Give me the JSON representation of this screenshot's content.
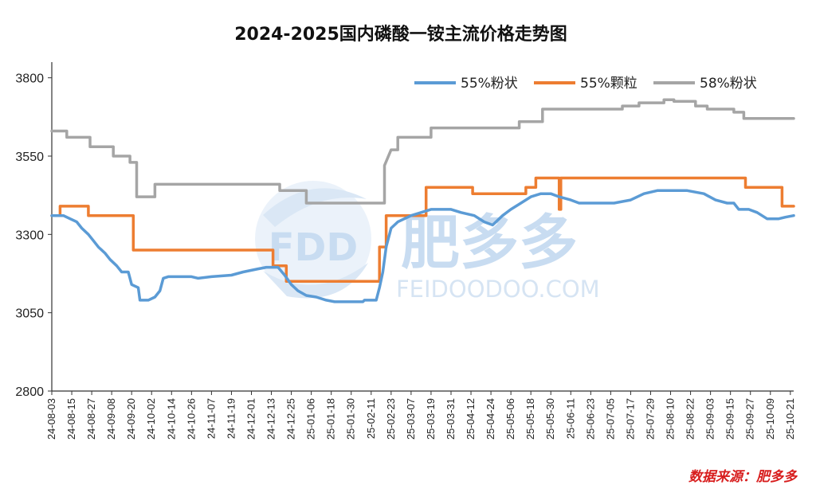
{
  "chart_data": {
    "type": "line",
    "title": "2024-2025国内磷酸一铵主流价格走势图",
    "source": "数据来源：肥多多",
    "watermark": {
      "logo": "FDD",
      "brand": "肥多多",
      "site": "FEIDOODOO.COM"
    },
    "ylim": [
      2800,
      3850
    ],
    "yticks": [
      2800,
      3050,
      3300,
      3550,
      3800
    ],
    "xlim": [
      "2024-08-03",
      "2025-10-23"
    ],
    "xticks": [
      "24-08-03",
      "24-08-15",
      "24-08-27",
      "24-09-08",
      "24-09-20",
      "24-10-02",
      "24-10-14",
      "24-10-26",
      "24-11-07",
      "24-11-19",
      "24-12-01",
      "24-12-13",
      "24-12-25",
      "25-01-06",
      "25-01-18",
      "25-01-30",
      "25-02-11",
      "25-02-23",
      "25-03-07",
      "25-03-19",
      "25-03-31",
      "25-04-12",
      "25-04-24",
      "25-05-06",
      "25-05-18",
      "25-05-30",
      "25-06-11",
      "25-06-23",
      "25-07-05",
      "25-07-17",
      "25-07-29",
      "25-08-10",
      "25-08-22",
      "25-09-03",
      "25-09-15",
      "25-09-27",
      "25-10-09",
      "25-10-21"
    ],
    "legend_position": "top-right",
    "grid": false,
    "series": [
      {
        "name": "55%粉状",
        "color": "#5b9bd5",
        "points": [
          [
            "2024-08-03",
            3360
          ],
          [
            "2024-08-10",
            3360
          ],
          [
            "2024-08-14",
            3350
          ],
          [
            "2024-08-18",
            3340
          ],
          [
            "2024-08-21",
            3320
          ],
          [
            "2024-08-25",
            3300
          ],
          [
            "2024-08-28",
            3280
          ],
          [
            "2024-08-31",
            3260
          ],
          [
            "2024-09-04",
            3240
          ],
          [
            "2024-09-07",
            3220
          ],
          [
            "2024-09-11",
            3200
          ],
          [
            "2024-09-14",
            3180
          ],
          [
            "2024-09-18",
            3180
          ],
          [
            "2024-09-20",
            3140
          ],
          [
            "2024-09-24",
            3130
          ],
          [
            "2024-09-25",
            3090
          ],
          [
            "2024-09-30",
            3090
          ],
          [
            "2024-10-04",
            3100
          ],
          [
            "2024-10-07",
            3120
          ],
          [
            "2024-10-09",
            3160
          ],
          [
            "2024-10-12",
            3165
          ],
          [
            "2024-10-26",
            3165
          ],
          [
            "2024-10-30",
            3160
          ],
          [
            "2024-11-07",
            3165
          ],
          [
            "2024-11-19",
            3170
          ],
          [
            "2024-11-26",
            3180
          ],
          [
            "2024-12-05",
            3190
          ],
          [
            "2024-12-10",
            3195
          ],
          [
            "2024-12-17",
            3195
          ],
          [
            "2024-12-21",
            3170
          ],
          [
            "2024-12-25",
            3140
          ],
          [
            "2024-12-29",
            3120
          ],
          [
            "2025-01-03",
            3105
          ],
          [
            "2025-01-09",
            3100
          ],
          [
            "2025-01-15",
            3090
          ],
          [
            "2025-01-20",
            3085
          ],
          [
            "2025-02-06",
            3085
          ],
          [
            "2025-02-07",
            3090
          ],
          [
            "2025-02-14",
            3090
          ],
          [
            "2025-02-16",
            3130
          ],
          [
            "2025-02-18",
            3180
          ],
          [
            "2025-02-20",
            3260
          ],
          [
            "2025-02-23",
            3320
          ],
          [
            "2025-02-27",
            3340
          ],
          [
            "2025-03-07",
            3360
          ],
          [
            "2025-03-19",
            3380
          ],
          [
            "2025-03-31",
            3380
          ],
          [
            "2025-04-06",
            3370
          ],
          [
            "2025-04-14",
            3360
          ],
          [
            "2025-04-20",
            3340
          ],
          [
            "2025-04-25",
            3330
          ],
          [
            "2025-05-01",
            3360
          ],
          [
            "2025-05-06",
            3380
          ],
          [
            "2025-05-12",
            3400
          ],
          [
            "2025-05-18",
            3420
          ],
          [
            "2025-05-24",
            3430
          ],
          [
            "2025-05-30",
            3430
          ],
          [
            "2025-06-04",
            3420
          ],
          [
            "2025-06-11",
            3410
          ],
          [
            "2025-06-16",
            3400
          ],
          [
            "2025-07-07",
            3400
          ],
          [
            "2025-07-17",
            3410
          ],
          [
            "2025-07-25",
            3430
          ],
          [
            "2025-08-02",
            3440
          ],
          [
            "2025-08-20",
            3440
          ],
          [
            "2025-08-30",
            3430
          ],
          [
            "2025-09-06",
            3410
          ],
          [
            "2025-09-13",
            3400
          ],
          [
            "2025-09-17",
            3400
          ],
          [
            "2025-09-20",
            3380
          ],
          [
            "2025-09-26",
            3380
          ],
          [
            "2025-10-01",
            3370
          ],
          [
            "2025-10-07",
            3350
          ],
          [
            "2025-10-14",
            3350
          ],
          [
            "2025-10-18",
            3355
          ],
          [
            "2025-10-23",
            3360
          ]
        ]
      },
      {
        "name": "55%颗粒",
        "color": "#ed7d31",
        "points": [
          [
            "2024-08-03",
            3360
          ],
          [
            "2024-08-08",
            3360
          ],
          [
            "2024-08-08",
            3390
          ],
          [
            "2024-08-25",
            3390
          ],
          [
            "2024-08-25",
            3360
          ],
          [
            "2024-09-21",
            3360
          ],
          [
            "2024-09-21",
            3250
          ],
          [
            "2024-12-14",
            3250
          ],
          [
            "2024-12-14",
            3200
          ],
          [
            "2024-12-22",
            3200
          ],
          [
            "2024-12-22",
            3150
          ],
          [
            "2025-02-16",
            3150
          ],
          [
            "2025-02-16",
            3260
          ],
          [
            "2025-02-20",
            3260
          ],
          [
            "2025-02-20",
            3360
          ],
          [
            "2025-03-16",
            3360
          ],
          [
            "2025-03-16",
            3450
          ],
          [
            "2025-04-13",
            3450
          ],
          [
            "2025-04-13",
            3430
          ],
          [
            "2025-05-15",
            3430
          ],
          [
            "2025-05-15",
            3450
          ],
          [
            "2025-05-21",
            3450
          ],
          [
            "2025-05-21",
            3480
          ],
          [
            "2025-06-04",
            3480
          ],
          [
            "2025-06-04",
            3380
          ],
          [
            "2025-06-05",
            3380
          ],
          [
            "2025-06-05",
            3480
          ],
          [
            "2025-09-24",
            3480
          ],
          [
            "2025-09-24",
            3450
          ],
          [
            "2025-10-16",
            3450
          ],
          [
            "2025-10-16",
            3390
          ],
          [
            "2025-10-23",
            3390
          ]
        ]
      },
      {
        "name": "58%粉状",
        "color": "#a5a5a5",
        "points": [
          [
            "2024-08-03",
            3630
          ],
          [
            "2024-08-12",
            3630
          ],
          [
            "2024-08-12",
            3610
          ],
          [
            "2024-08-26",
            3610
          ],
          [
            "2024-08-26",
            3580
          ],
          [
            "2024-09-09",
            3580
          ],
          [
            "2024-09-09",
            3550
          ],
          [
            "2024-09-19",
            3550
          ],
          [
            "2024-09-19",
            3530
          ],
          [
            "2024-09-23",
            3530
          ],
          [
            "2024-09-23",
            3420
          ],
          [
            "2024-10-04",
            3420
          ],
          [
            "2024-10-04",
            3460
          ],
          [
            "2024-12-18",
            3460
          ],
          [
            "2024-12-18",
            3440
          ],
          [
            "2025-01-03",
            3440
          ],
          [
            "2025-01-03",
            3400
          ],
          [
            "2025-02-19",
            3400
          ],
          [
            "2025-02-19",
            3520
          ],
          [
            "2025-02-23",
            3570
          ],
          [
            "2025-02-27",
            3570
          ],
          [
            "2025-02-27",
            3610
          ],
          [
            "2025-03-19",
            3610
          ],
          [
            "2025-03-19",
            3640
          ],
          [
            "2025-05-11",
            3640
          ],
          [
            "2025-05-11",
            3660
          ],
          [
            "2025-05-25",
            3660
          ],
          [
            "2025-05-25",
            3700
          ],
          [
            "2025-07-12",
            3700
          ],
          [
            "2025-07-12",
            3710
          ],
          [
            "2025-07-22",
            3710
          ],
          [
            "2025-07-22",
            3720
          ],
          [
            "2025-08-06",
            3720
          ],
          [
            "2025-08-06",
            3730
          ],
          [
            "2025-08-12",
            3730
          ],
          [
            "2025-08-12",
            3725
          ],
          [
            "2025-08-25",
            3725
          ],
          [
            "2025-08-25",
            3710
          ],
          [
            "2025-09-01",
            3710
          ],
          [
            "2025-09-01",
            3700
          ],
          [
            "2025-09-17",
            3700
          ],
          [
            "2025-09-17",
            3690
          ],
          [
            "2025-09-23",
            3690
          ],
          [
            "2025-09-23",
            3670
          ],
          [
            "2025-10-23",
            3670
          ]
        ]
      }
    ]
  }
}
